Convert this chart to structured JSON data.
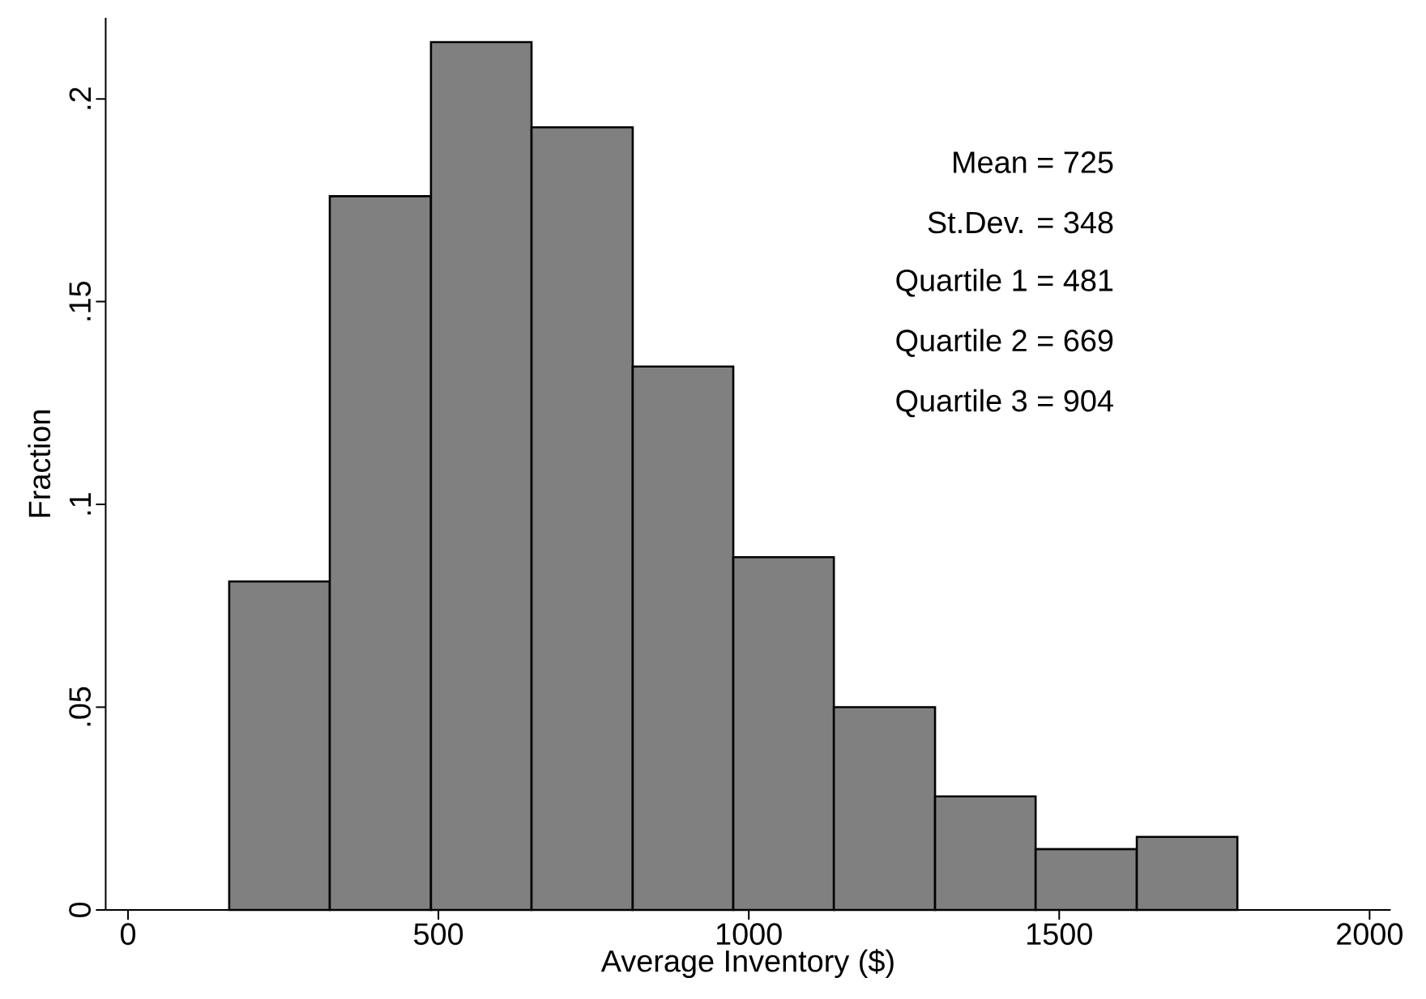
{
  "chart_data": {
    "type": "histogram",
    "xlabel": "Average Inventory ($)",
    "ylabel": "Fraction",
    "bins": [
      163,
      325,
      488,
      650,
      813,
      975,
      1137,
      1300,
      1462,
      1625,
      1787
    ],
    "values": [
      0.081,
      0.176,
      0.214,
      0.193,
      0.134,
      0.087,
      0.05,
      0.028,
      0.015,
      0.018
    ],
    "color": "#808080",
    "xlim": [
      -36,
      2034
    ],
    "ylim": [
      0,
      0.22
    ],
    "xticks": [
      0,
      500,
      1000,
      1500,
      2000
    ],
    "yticks": [
      0,
      {
        "value": 0.05,
        "label": ".05"
      },
      {
        "value": 0.1,
        "label": ".1"
      },
      {
        "value": 0.15,
        "label": ".15"
      },
      {
        "value": 0.2,
        "label": ".2"
      }
    ],
    "annotations": [
      "Mean = 725",
      "St.Dev. = 348",
      "Quartile 1 = 481",
      "Quartile 2 = 669",
      "Quartile 3 = 904"
    ]
  }
}
